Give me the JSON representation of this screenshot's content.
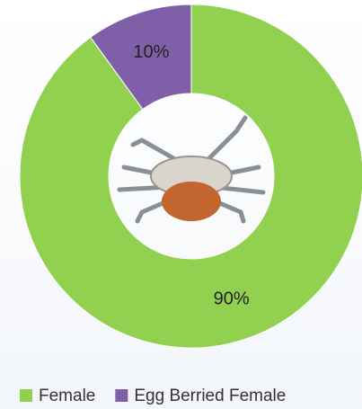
{
  "chart_data": {
    "type": "pie",
    "donut": true,
    "categories": [
      "Female",
      "Egg Berried Female"
    ],
    "values": [
      90,
      10
    ],
    "value_labels": [
      "90%",
      "10%"
    ],
    "colors": [
      "#92d050",
      "#7f5fa8"
    ],
    "legend": "bottom"
  }
}
